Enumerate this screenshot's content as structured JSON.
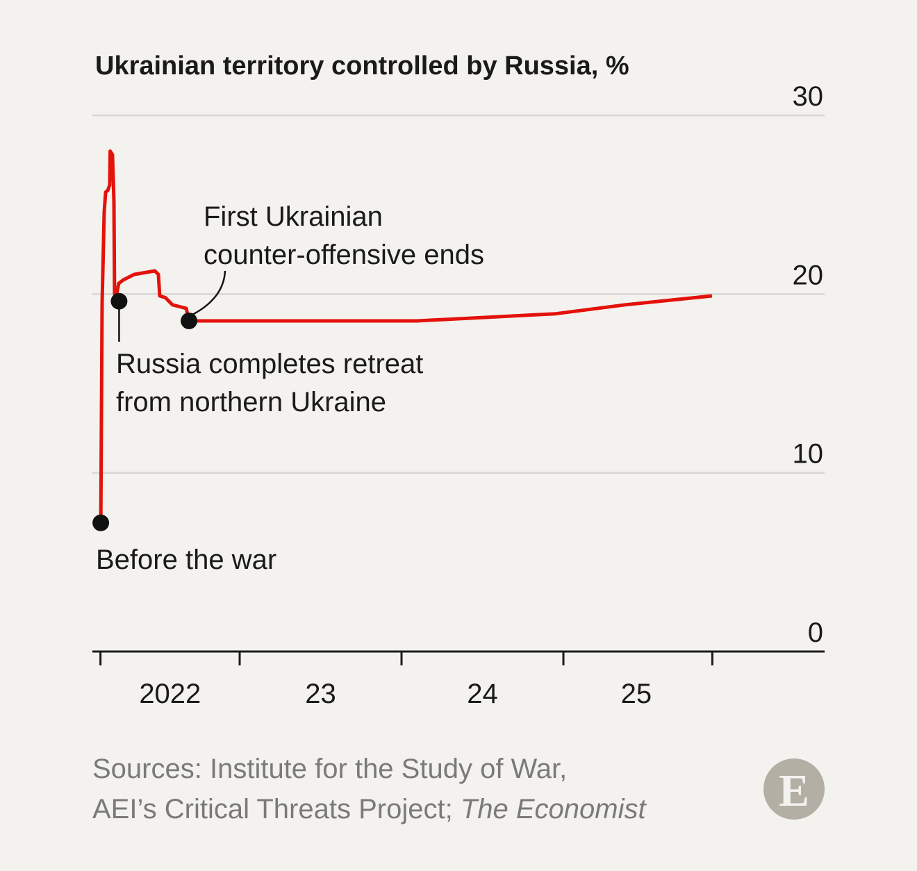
{
  "chart_data": {
    "type": "line",
    "title": "Ukrainian territory controlled by Russia, %",
    "xlabel": "",
    "ylabel": "",
    "ylim": [
      0,
      30
    ],
    "xlim": [
      2022.14,
      2025.92
    ],
    "y_ticks": [
      0,
      10,
      20,
      30
    ],
    "y_tick_labels": [
      "0",
      "10",
      "20",
      "30"
    ],
    "x_tick_positions": [
      2022.14,
      2023.0,
      2024.0,
      2025.0,
      2025.92
    ],
    "x_labels": [
      {
        "label": "2022",
        "at": 2022.57
      },
      {
        "label": "23",
        "at": 2023.5
      },
      {
        "label": "24",
        "at": 2024.5
      },
      {
        "label": "25",
        "at": 2025.45
      }
    ],
    "grid": true,
    "series": [
      {
        "name": "Ukrainian territory controlled by Russia",
        "color": "#e3120b",
        "x": [
          2022.142,
          2022.15,
          2022.163,
          2022.172,
          2022.185,
          2022.197,
          2022.2,
          2022.214,
          2022.223,
          2022.227,
          2022.236,
          2022.253,
          2022.283,
          2022.348,
          2022.476,
          2022.498,
          2022.506,
          2022.541,
          2022.584,
          2022.67,
          2022.687,
          2023.236,
          2024.094,
          2024.953,
          2025.382,
          2025.918
        ],
        "y": [
          7.2,
          19.5,
          24.6,
          25.7,
          25.8,
          26.1,
          28.0,
          27.8,
          25.2,
          20.0,
          19.8,
          20.6,
          20.8,
          21.1,
          21.3,
          21.1,
          19.9,
          19.8,
          19.4,
          19.2,
          18.5,
          18.5,
          18.5,
          18.9,
          19.4,
          19.9
        ]
      }
    ],
    "annotations": [
      {
        "text_lines": [
          "Before the war"
        ],
        "x": 2022.142,
        "y": 7.2
      },
      {
        "text_lines": [
          "Russia completes retreat",
          "from northern Ukraine"
        ],
        "x": 2022.255,
        "y": 19.6
      },
      {
        "text_lines": [
          "First Ukrainian",
          "counter-offensive ends"
        ],
        "x": 2022.687,
        "y": 18.5
      }
    ]
  },
  "footer": {
    "source_line1": "Sources: Institute for the Study of War,",
    "source_line2_prefix": "AEI’s Critical Threats Project; ",
    "source_line2_italic": "The Economist",
    "logo_letter": "E"
  },
  "colors": {
    "background": "#f4f2ee",
    "line": "#e3120b",
    "grid": "#d9d7d3",
    "logo": "#b3afa5"
  }
}
